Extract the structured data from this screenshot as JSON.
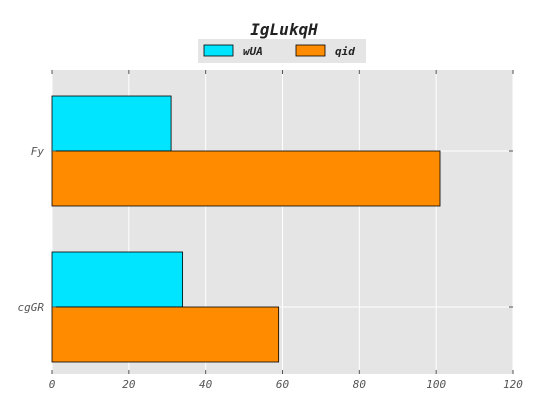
{
  "chart_data": {
    "type": "bar",
    "orientation": "horizontal",
    "title": "IgLukqH",
    "xlabel": "",
    "ylabel": "",
    "categories": [
      "cgGR",
      "Fy"
    ],
    "series": [
      {
        "name": "wUA",
        "values": [
          34,
          31
        ],
        "color": "#00e5ff"
      },
      {
        "name": "qid",
        "values": [
          59,
          101
        ],
        "color": "#ff8c00"
      }
    ],
    "xlim": [
      0,
      120
    ],
    "xticks": [
      0,
      20,
      40,
      60,
      80,
      100,
      120
    ],
    "grid": true,
    "legend_position": "top-center",
    "plot_background": "#e5e5e5",
    "grid_color": "#ffffff",
    "bar_edge_color": "#000000"
  }
}
